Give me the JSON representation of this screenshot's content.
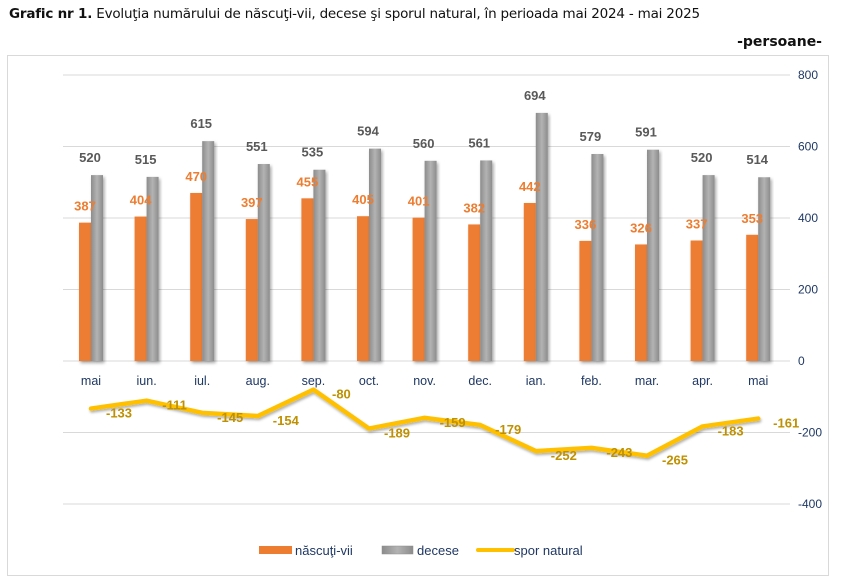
{
  "header": {
    "title_bold": "Grafic nr 1.",
    "title_rest": " Evoluţia numărului de născuţi-vii, decese şi sporul natural, în perioada  mai 2024 - mai 2025",
    "unit": "-persoane-"
  },
  "colors": {
    "births": "#ed7d31",
    "deaths": "#a5a5a5",
    "natural_increase": "#ffc000",
    "axis_text": "#1f3864",
    "grid": "#d9d9d9"
  },
  "chart_data": {
    "type": "bar",
    "title": "Evoluţia numărului de născuţi-vii, decese şi sporul natural, în perioada  mai 2024 - mai 2025",
    "ylabel": "-persoane-",
    "xlabel": "",
    "categories": [
      "mai",
      "iun.",
      "iul.",
      "aug.",
      "sep.",
      "oct.",
      "nov.",
      "dec.",
      "ian.",
      "feb.",
      "mar.",
      "apr.",
      "mai"
    ],
    "series": [
      {
        "name": "născuţi-vii",
        "type": "bar",
        "values": [
          387,
          404,
          470,
          397,
          455,
          405,
          401,
          382,
          442,
          336,
          326,
          337,
          353
        ]
      },
      {
        "name": "decese",
        "type": "bar",
        "values": [
          520,
          515,
          615,
          551,
          535,
          594,
          560,
          561,
          694,
          579,
          591,
          520,
          514
        ]
      },
      {
        "name": "spor natural",
        "type": "line",
        "values": [
          -133,
          -111,
          -145,
          -154,
          -80,
          -189,
          -159,
          -179,
          -252,
          -243,
          -265,
          -183,
          -161
        ]
      }
    ],
    "y_ticks": [
      800,
      600,
      400,
      200,
      0,
      -200,
      -400
    ],
    "y_tick_labels": [
      "800",
      "600",
      "400",
      "200",
      "0",
      "-200",
      "-400"
    ],
    "ylim": [
      -400,
      800
    ],
    "y_axis_position": "right",
    "grid": true,
    "legend": {
      "position": "bottom",
      "entries": [
        "născuţi-vii",
        "decese",
        "spor natural"
      ]
    }
  }
}
